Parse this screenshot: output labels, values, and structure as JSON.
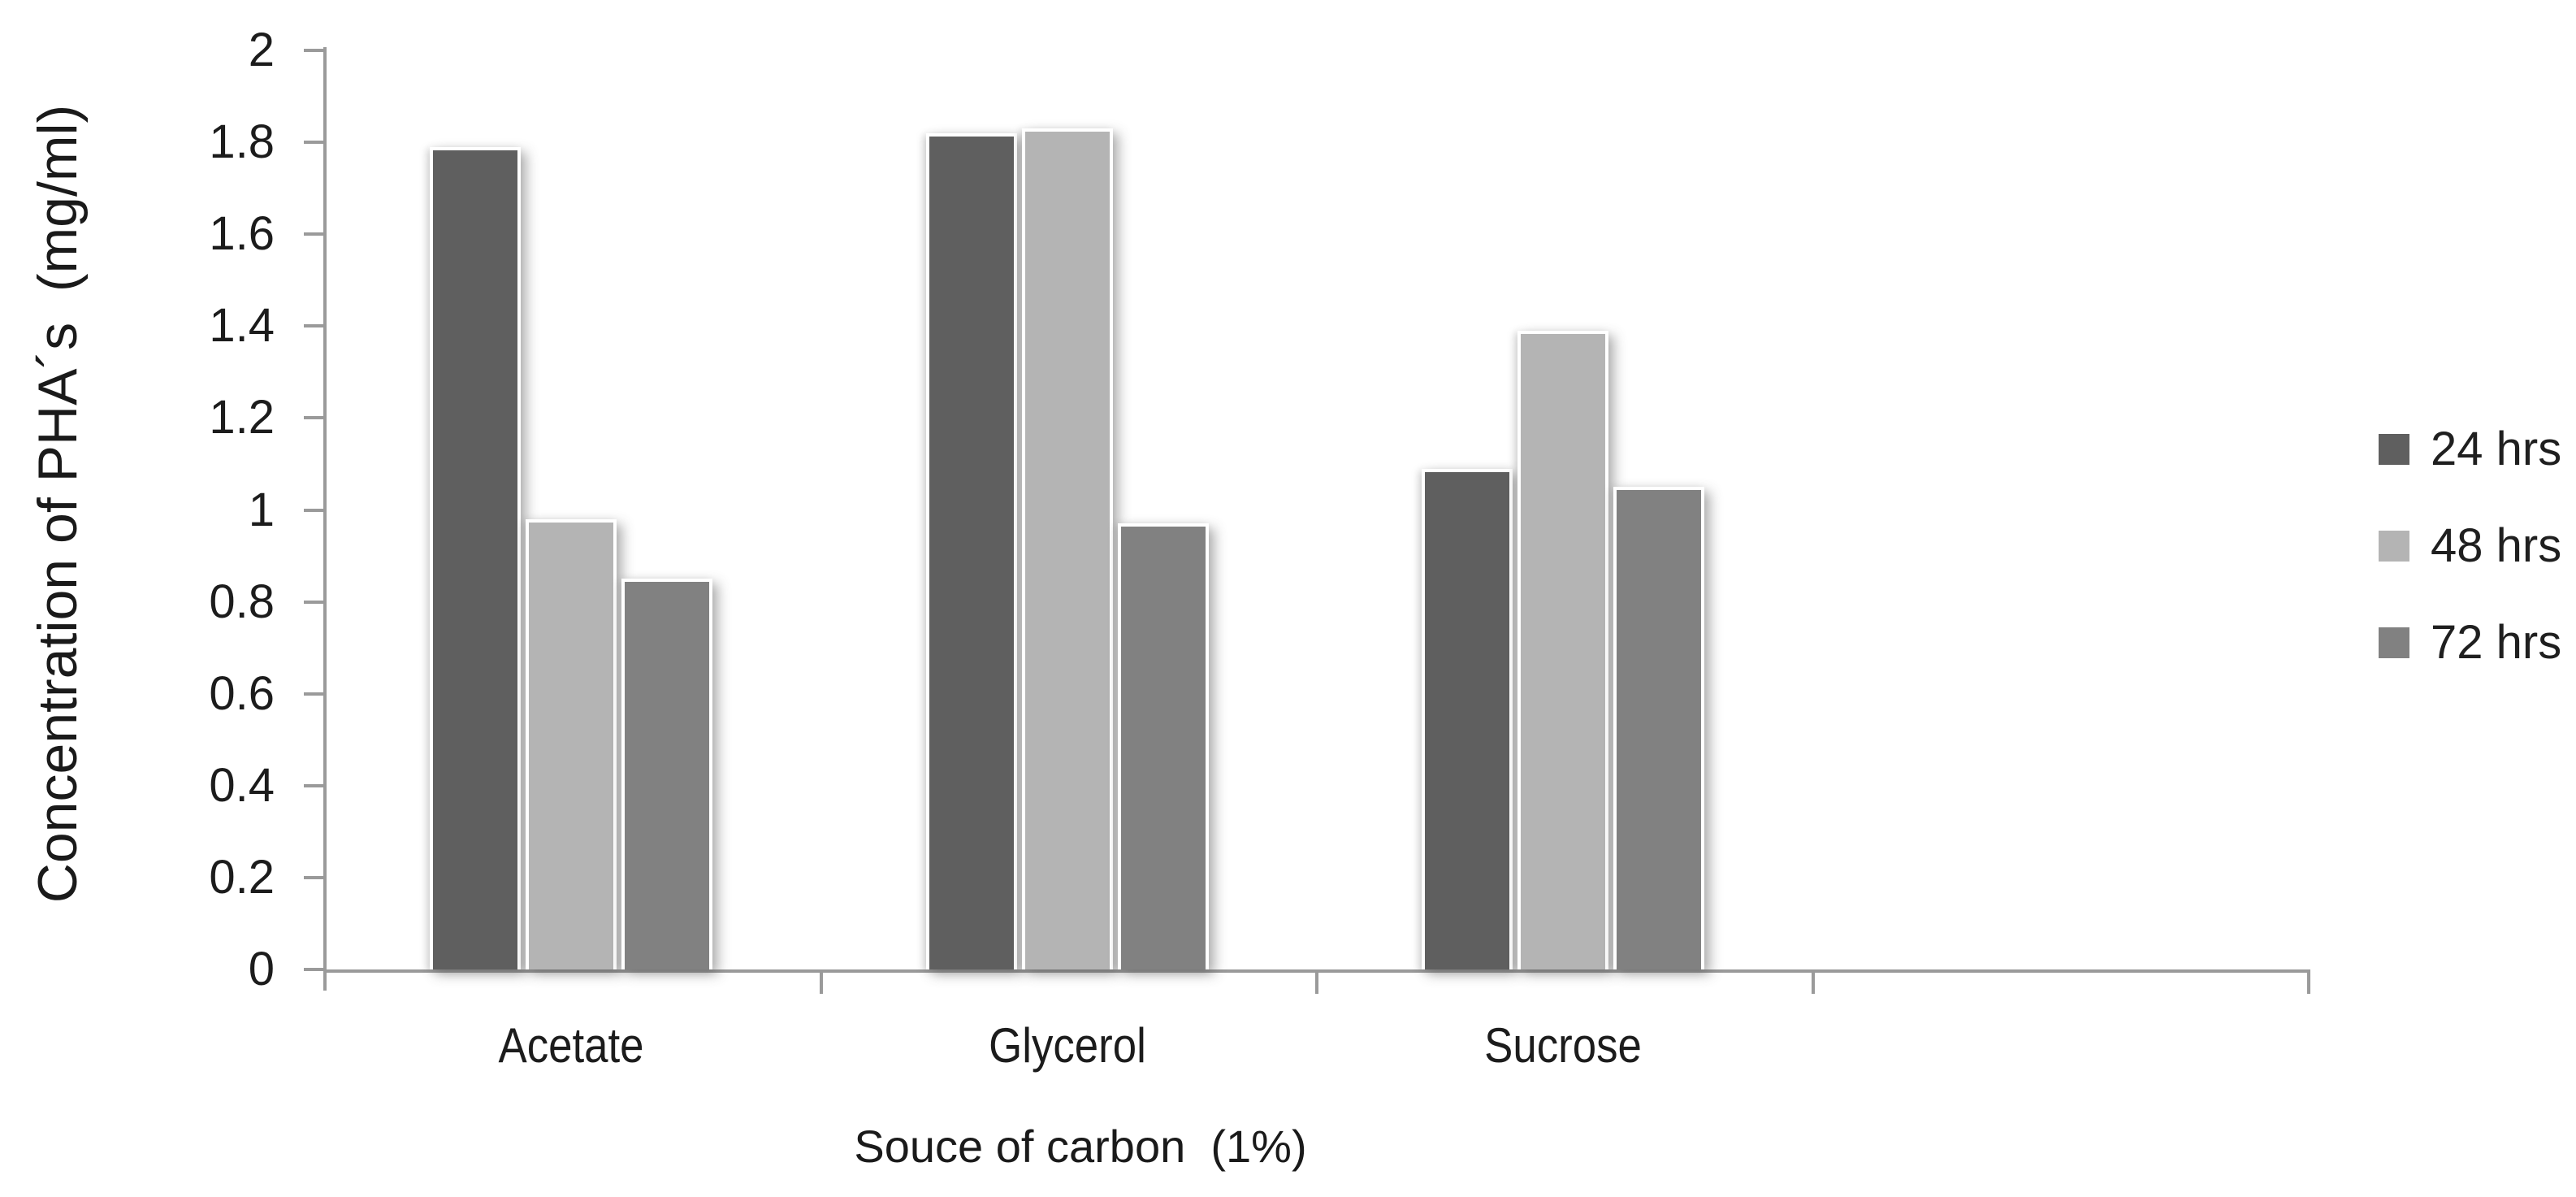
{
  "chart_data": {
    "type": "bar",
    "title": "",
    "xlabel": "Souce of carbon  (1%)",
    "ylabel": "Concentration of PHA´s  (mg/ml)",
    "categories": [
      "Acetate",
      "Glycerol",
      "Sucrose"
    ],
    "series": [
      {
        "name": "24 hrs",
        "color": "#5f5f5f",
        "values": [
          1.79,
          1.82,
          1.09
        ]
      },
      {
        "name": "48 hrs",
        "color": "#b4b4b4",
        "values": [
          0.98,
          1.83,
          1.39
        ]
      },
      {
        "name": "72 hrs",
        "color": "#818181",
        "values": [
          0.85,
          0.97,
          1.05
        ]
      }
    ],
    "ylim": [
      0,
      2
    ],
    "y_ticks": [
      "2",
      "1.8",
      "1.6",
      "1.4",
      "1.2",
      "1",
      "0.8",
      "0.6",
      "0.4",
      "0.2",
      "0"
    ],
    "y_tick_values": [
      2,
      1.8,
      1.6,
      1.4,
      1.2,
      1,
      0.8,
      0.6,
      0.4,
      0.2,
      0
    ],
    "x_slots": 4,
    "grid": false,
    "legend_position": "right-middle",
    "axis_color": "#9a9a9a",
    "background": "#ffffff"
  }
}
